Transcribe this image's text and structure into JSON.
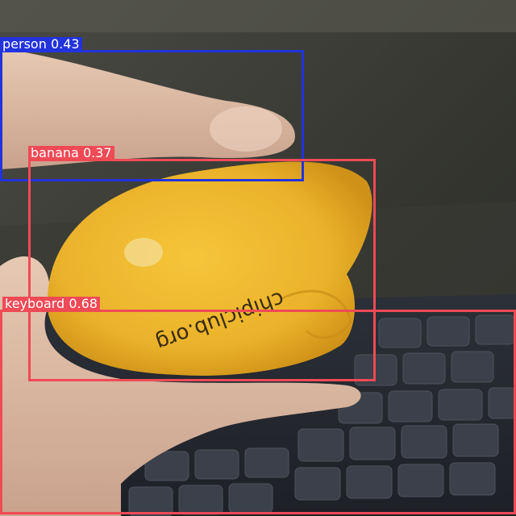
{
  "image": {
    "subject": "hand-holding-yellow-toy-over-laptop-keyboard"
  },
  "toy_imprint": "chipiclub.org",
  "detections": [
    {
      "label": "person",
      "score": "0.43",
      "color": "#2233dd"
    },
    {
      "label": "banana",
      "score": "0.37",
      "color": "#f04a56"
    },
    {
      "label": "keyboard",
      "score": "0.68",
      "color": "#f04a56"
    }
  ]
}
